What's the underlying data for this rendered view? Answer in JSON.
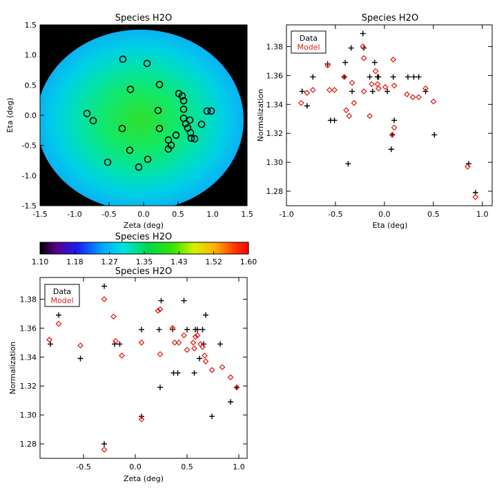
{
  "chart_data": [
    {
      "type": "heatmap",
      "title": "Species H2O",
      "xlabel": "Zeta (deg)",
      "ylabel": "Eta (deg)",
      "xlim": [
        -1.5,
        1.5
      ],
      "ylim": [
        -1.5,
        1.5
      ],
      "x_ticks": [
        "-1.5",
        "-1.0",
        "-0.5",
        "0.0",
        "0.5",
        "1.0",
        "1.5"
      ],
      "y_ticks": [
        "-1.5",
        "-1.0",
        "-0.5",
        "0.0",
        "0.5",
        "1.0",
        "1.5"
      ],
      "field_center": [
        -0.05,
        -0.08
      ],
      "field_radius": 1.5,
      "background_color": "#000000",
      "marker_color": "#000000",
      "points": [
        [
          -0.3,
          0.93
        ],
        [
          0.05,
          0.86
        ],
        [
          -0.82,
          0.03
        ],
        [
          -0.73,
          -0.09
        ],
        [
          -0.19,
          0.43
        ],
        [
          -0.31,
          -0.22
        ],
        [
          -0.2,
          -0.58
        ],
        [
          -0.52,
          -0.78
        ],
        [
          -0.07,
          -0.86
        ],
        [
          0.06,
          -0.73
        ],
        [
          0.23,
          0.51
        ],
        [
          0.21,
          0.08
        ],
        [
          0.23,
          -0.22
        ],
        [
          0.36,
          -0.41
        ],
        [
          0.36,
          -0.56
        ],
        [
          0.4,
          -0.5
        ],
        [
          0.47,
          -0.33
        ],
        [
          0.51,
          0.36
        ],
        [
          0.56,
          0.32
        ],
        [
          0.58,
          0.24
        ],
        [
          0.58,
          0.1
        ],
        [
          0.58,
          -0.05
        ],
        [
          0.61,
          -0.14
        ],
        [
          0.64,
          -0.21
        ],
        [
          0.67,
          -0.08
        ],
        [
          0.68,
          -0.29
        ],
        [
          0.69,
          -0.38
        ],
        [
          0.74,
          -0.39
        ],
        [
          0.84,
          -0.15
        ],
        [
          0.92,
          0.07
        ],
        [
          0.98,
          0.07
        ]
      ]
    },
    {
      "type": "scatter",
      "title": "Species H2O",
      "xlabel": "Eta (deg)",
      "ylabel": "Normalization",
      "xlim": [
        -1.0,
        1.1
      ],
      "ylim": [
        1.27,
        1.395
      ],
      "x_ticks": [
        "-1.0",
        "-0.5",
        "0.0",
        "0.5",
        "1.0"
      ],
      "y_ticks": [
        "1.28",
        "1.30",
        "1.32",
        "1.34",
        "1.36",
        "1.38"
      ],
      "legend": [
        "Data",
        "Model"
      ],
      "legend_position": "top-left",
      "series": [
        {
          "name": "Data",
          "color": "#000000",
          "marker": "plus",
          "points": [
            [
              -0.84,
              1.349
            ],
            [
              -0.79,
              1.339
            ],
            [
              -0.73,
              1.359
            ],
            [
              -0.58,
              1.368
            ],
            [
              -0.55,
              1.329
            ],
            [
              -0.51,
              1.329
            ],
            [
              -0.41,
              1.359
            ],
            [
              -0.4,
              1.369
            ],
            [
              -0.37,
              1.299
            ],
            [
              -0.34,
              1.379
            ],
            [
              -0.33,
              1.349
            ],
            [
              -0.22,
              1.389
            ],
            [
              -0.21,
              1.379
            ],
            [
              -0.15,
              1.359
            ],
            [
              -0.12,
              1.349
            ],
            [
              -0.1,
              1.369
            ],
            [
              -0.07,
              1.359
            ],
            [
              -0.06,
              1.359
            ],
            [
              0.03,
              1.349
            ],
            [
              0.07,
              1.309
            ],
            [
              0.08,
              1.319
            ],
            [
              0.09,
              1.359
            ],
            [
              0.1,
              1.329
            ],
            [
              0.24,
              1.359
            ],
            [
              0.3,
              1.359
            ],
            [
              0.35,
              1.359
            ],
            [
              0.42,
              1.349
            ],
            [
              0.51,
              1.319
            ],
            [
              0.86,
              1.299
            ],
            [
              0.93,
              1.279
            ]
          ]
        },
        {
          "name": "Model",
          "color": "#e0201a",
          "marker": "diamond",
          "points": [
            [
              -0.85,
              1.341
            ],
            [
              -0.79,
              1.348
            ],
            [
              -0.73,
              1.35
            ],
            [
              -0.58,
              1.367
            ],
            [
              -0.56,
              1.35
            ],
            [
              -0.51,
              1.35
            ],
            [
              -0.41,
              1.359
            ],
            [
              -0.39,
              1.336
            ],
            [
              -0.36,
              1.332
            ],
            [
              -0.33,
              1.355
            ],
            [
              -0.31,
              1.341
            ],
            [
              -0.22,
              1.38
            ],
            [
              -0.21,
              1.372
            ],
            [
              -0.21,
              1.349
            ],
            [
              -0.15,
              1.332
            ],
            [
              -0.13,
              1.354
            ],
            [
              -0.09,
              1.363
            ],
            [
              -0.07,
              1.354
            ],
            [
              -0.06,
              1.351
            ],
            [
              0.01,
              1.352
            ],
            [
              0.08,
              1.319
            ],
            [
              0.09,
              1.371
            ],
            [
              0.1,
              1.324
            ],
            [
              0.1,
              1.353
            ],
            [
              0.23,
              1.347
            ],
            [
              0.29,
              1.345
            ],
            [
              0.35,
              1.345
            ],
            [
              0.42,
              1.351
            ],
            [
              0.5,
              1.342
            ],
            [
              0.85,
              1.297
            ],
            [
              0.93,
              1.276
            ]
          ]
        }
      ]
    },
    {
      "type": "colorbar",
      "title": "Species H2O",
      "range": [
        1.1,
        1.6
      ],
      "tick_labels": [
        "1.10",
        "1.18",
        "1.27",
        "1.35",
        "1.43",
        "1.52",
        "1.60"
      ]
    },
    {
      "type": "scatter",
      "title": "Species H2O",
      "xlabel": "Zeta (deg)",
      "ylabel": "Normalization",
      "xlim": [
        -0.92,
        1.08
      ],
      "ylim": [
        1.27,
        1.395
      ],
      "x_ticks": [
        "-0.5",
        "0.0",
        "0.5",
        "1.0"
      ],
      "x_tick_values": [
        -0.5,
        0.0,
        0.5,
        1.0
      ],
      "y_ticks": [
        "1.28",
        "1.30",
        "1.32",
        "1.34",
        "1.36",
        "1.38"
      ],
      "legend": [
        "Data",
        "Model"
      ],
      "legend_position": "top-left",
      "series": [
        {
          "name": "Data",
          "color": "#000000",
          "marker": "plus",
          "points": [
            [
              -0.82,
              1.349
            ],
            [
              -0.74,
              1.369
            ],
            [
              -0.53,
              1.339
            ],
            [
              -0.3,
              1.389
            ],
            [
              -0.3,
              1.28
            ],
            [
              -0.2,
              1.349
            ],
            [
              -0.15,
              1.349
            ],
            [
              0.06,
              1.359
            ],
            [
              0.06,
              1.299
            ],
            [
              0.23,
              1.359
            ],
            [
              0.24,
              1.319
            ],
            [
              0.25,
              1.379
            ],
            [
              0.36,
              1.359
            ],
            [
              0.37,
              1.329
            ],
            [
              0.41,
              1.329
            ],
            [
              0.47,
              1.379
            ],
            [
              0.5,
              1.359
            ],
            [
              0.57,
              1.329
            ],
            [
              0.58,
              1.359
            ],
            [
              0.6,
              1.359
            ],
            [
              0.62,
              1.339
            ],
            [
              0.65,
              1.359
            ],
            [
              0.66,
              1.349
            ],
            [
              0.68,
              1.369
            ],
            [
              0.74,
              1.299
            ],
            [
              0.82,
              1.349
            ],
            [
              0.92,
              1.309
            ],
            [
              0.98,
              1.319
            ]
          ]
        },
        {
          "name": "Model",
          "color": "#e0201a",
          "marker": "diamond",
          "points": [
            [
              -0.83,
              1.352
            ],
            [
              -0.74,
              1.363
            ],
            [
              -0.53,
              1.348
            ],
            [
              -0.3,
              1.38
            ],
            [
              -0.3,
              1.276
            ],
            [
              -0.21,
              1.368
            ],
            [
              -0.19,
              1.351
            ],
            [
              -0.13,
              1.341
            ],
            [
              0.06,
              1.35
            ],
            [
              0.06,
              1.297
            ],
            [
              0.22,
              1.372
            ],
            [
              0.24,
              1.373
            ],
            [
              0.24,
              1.342
            ],
            [
              0.36,
              1.36
            ],
            [
              0.38,
              1.35
            ],
            [
              0.42,
              1.35
            ],
            [
              0.47,
              1.355
            ],
            [
              0.5,
              1.345
            ],
            [
              0.56,
              1.35
            ],
            [
              0.57,
              1.346
            ],
            [
              0.58,
              1.354
            ],
            [
              0.6,
              1.355
            ],
            [
              0.63,
              1.349
            ],
            [
              0.65,
              1.347
            ],
            [
              0.67,
              1.341
            ],
            [
              0.68,
              1.337
            ],
            [
              0.74,
              1.331
            ],
            [
              0.84,
              1.333
            ],
            [
              0.92,
              1.326
            ],
            [
              0.98,
              1.319
            ]
          ]
        }
      ]
    }
  ]
}
